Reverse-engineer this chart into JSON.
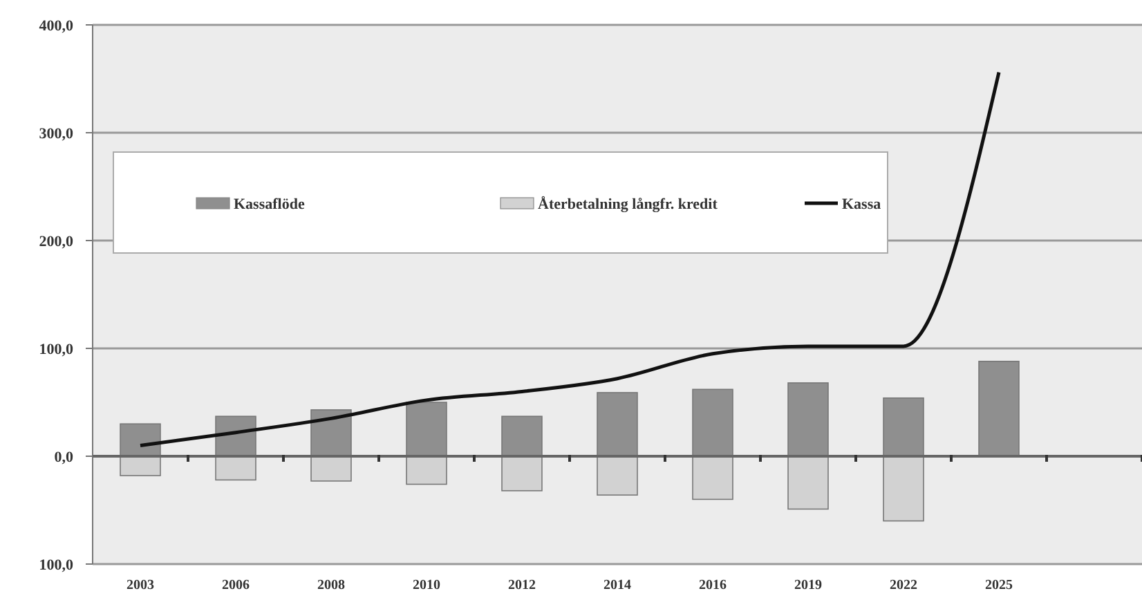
{
  "chart_data": {
    "type": "bar",
    "stacked": true,
    "categories": [
      "2003",
      "2006",
      "2008",
      "2010",
      "2012",
      "2014",
      "2016",
      "2019",
      "2022",
      "2025",
      null
    ],
    "series": [
      {
        "name": "Kassaflöde",
        "color": "#8f8f8f",
        "values": [
          30,
          37,
          43,
          50,
          37,
          59,
          62,
          68,
          54,
          88,
          null
        ]
      },
      {
        "name": "Återbetalning långfr. kredit",
        "color": "#d2d2d2",
        "values": [
          -18,
          -22,
          -23,
          -26,
          -32,
          -36,
          -40,
          -49,
          -60,
          null,
          null
        ]
      },
      {
        "name": "Kassa",
        "type": "line",
        "color": "#111111",
        "values": [
          10,
          22,
          35,
          52,
          60,
          72,
          95,
          102,
          102,
          356,
          null
        ]
      }
    ],
    "ylim": [
      -100,
      400
    ],
    "yticks": [
      {
        "value": -100,
        "label": "100,0"
      },
      {
        "value": 0,
        "label": "0,0"
      },
      {
        "value": 100,
        "label": "100,0"
      },
      {
        "value": 200,
        "label": "200,0"
      },
      {
        "value": 300,
        "label": "300,0"
      },
      {
        "value": 400,
        "label": "400,0"
      }
    ],
    "grid": "y",
    "legend": "top",
    "marker": "none",
    "line_style": "solid"
  }
}
